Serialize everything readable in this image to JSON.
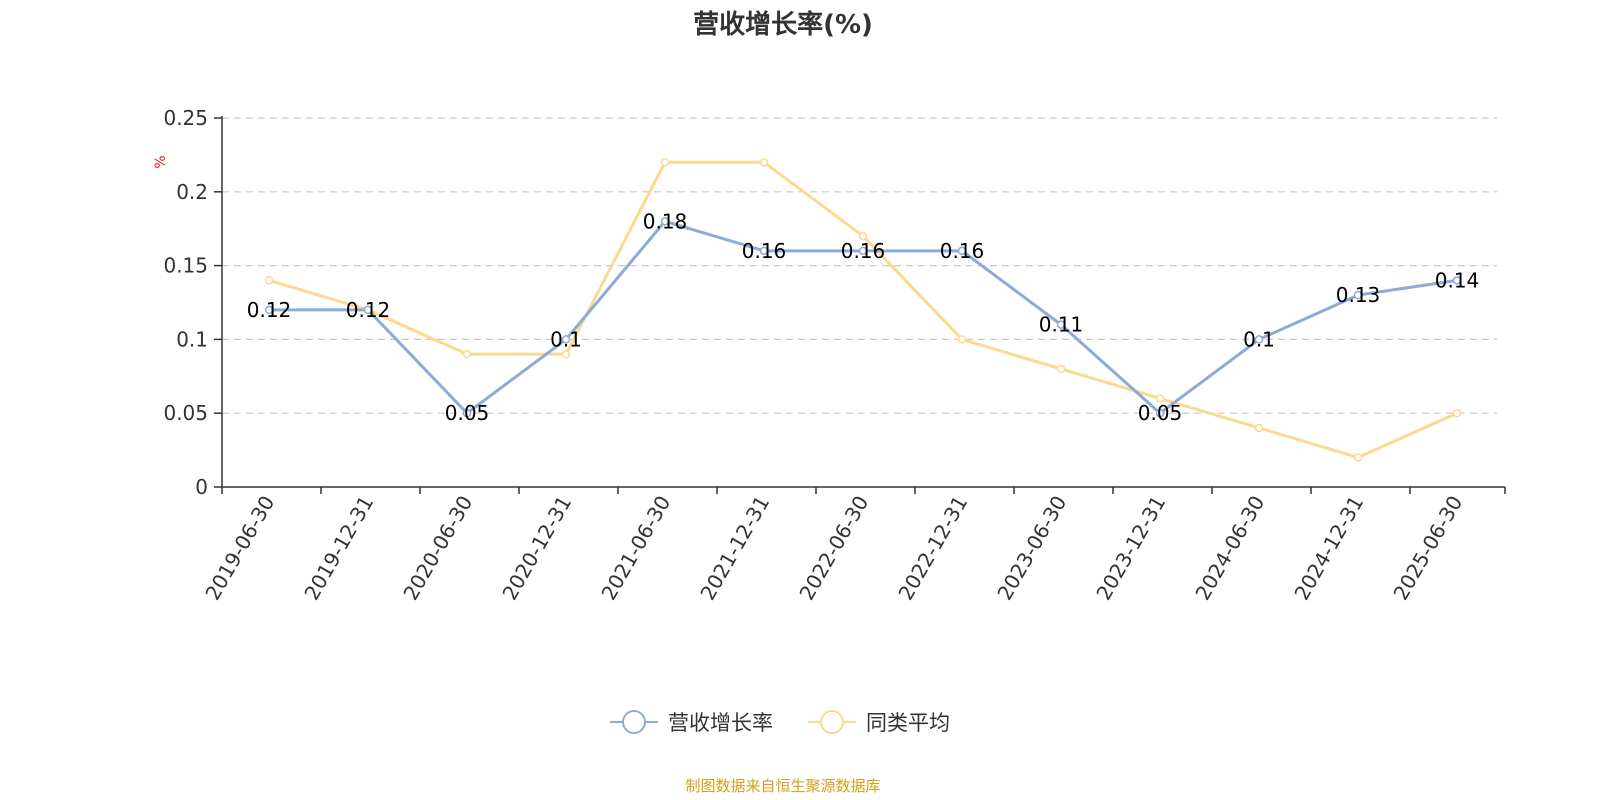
{
  "chart_data": {
    "type": "line",
    "title": "营收增长率(%)",
    "ylabel": "%",
    "xlabel": "",
    "categories": [
      "2019-06-30",
      "2019-12-31",
      "2020-06-30",
      "2020-12-31",
      "2021-06-30",
      "2021-12-31",
      "2022-06-30",
      "2022-12-31",
      "2023-06-30",
      "2023-12-31",
      "2024-06-30",
      "2024-12-31",
      "2025-06-30"
    ],
    "ylim": [
      0,
      0.25
    ],
    "yticks": [
      0,
      0.05,
      0.1,
      0.15,
      0.2,
      0.25
    ],
    "ytick_labels": [
      "0",
      "0.05",
      "0.1",
      "0.15",
      "0.2",
      "0.25"
    ],
    "grid": true,
    "legend_position": "bottom",
    "series": [
      {
        "name": "营收增长率",
        "color": "#8eaad6",
        "values": [
          0.12,
          0.12,
          0.05,
          0.1,
          0.18,
          0.16,
          0.16,
          0.16,
          0.11,
          0.05,
          0.1,
          0.13,
          0.14
        ],
        "data_labels": [
          "0.12",
          "0.12",
          "0.05",
          "0.1",
          "0.18",
          "0.16",
          "0.16",
          "0.16",
          "0.11",
          "0.05",
          "0.1",
          "0.13",
          "0.14"
        ]
      },
      {
        "name": "同类平均",
        "color": "#fcd98f",
        "values": [
          0.14,
          0.12,
          0.09,
          0.09,
          0.22,
          0.22,
          0.17,
          0.1,
          0.08,
          0.06,
          0.04,
          0.02,
          0.05
        ]
      }
    ],
    "unit_color": "#e02020"
  },
  "footer": {
    "source": "制图数据来自恒生聚源数据库",
    "source_color": "#d4a017"
  }
}
